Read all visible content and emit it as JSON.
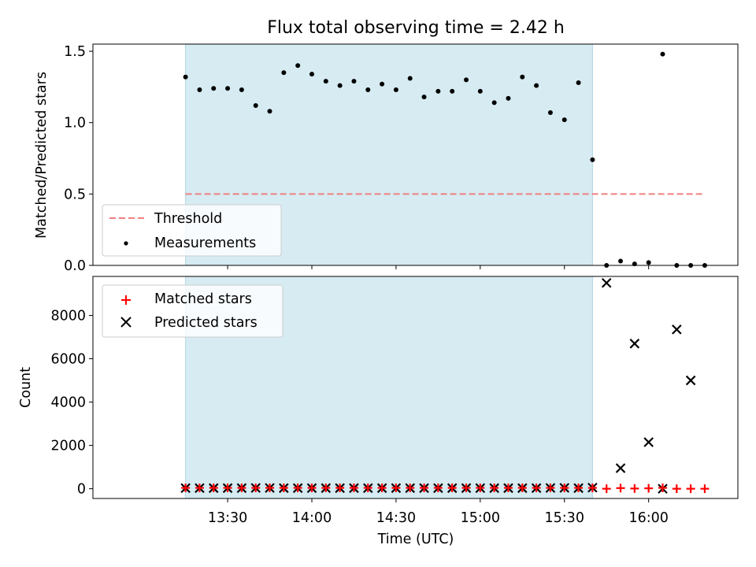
{
  "chart_data": [
    {
      "type": "scatter",
      "title": "Flux total observing time = 2.42 h",
      "xlabel": "",
      "ylabel": "Matched/Predicted stars",
      "xlim_minutes": [
        12.7,
        16.53
      ],
      "ylim": [
        0,
        1.55
      ],
      "yticks": [
        0.0,
        0.5,
        1.0,
        1.5
      ],
      "ytick_labels": [
        "0.0",
        "0.5",
        "1.0",
        "1.5"
      ],
      "shaded_interval": [
        "13:15",
        "15:40"
      ],
      "threshold": {
        "label": "Threshold",
        "value": 0.5,
        "x_start": "13:15",
        "x_end": "16:20",
        "color": "#f08080"
      },
      "legend": {
        "position": "lower-left",
        "entries": [
          "Threshold",
          "Measurements"
        ]
      },
      "series": [
        {
          "name": "Measurements",
          "x": [
            "13:15",
            "13:20",
            "13:25",
            "13:30",
            "13:35",
            "13:40",
            "13:45",
            "13:50",
            "13:55",
            "14:00",
            "14:05",
            "14:10",
            "14:15",
            "14:20",
            "14:25",
            "14:30",
            "14:35",
            "14:40",
            "14:45",
            "14:50",
            "14:55",
            "15:00",
            "15:05",
            "15:10",
            "15:15",
            "15:20",
            "15:25",
            "15:30",
            "15:35",
            "15:40",
            "15:45",
            "15:50",
            "15:55",
            "16:00",
            "16:05",
            "16:10",
            "16:15",
            "16:20"
          ],
          "y": [
            1.32,
            1.23,
            1.24,
            1.24,
            1.23,
            1.12,
            1.08,
            1.35,
            1.4,
            1.34,
            1.29,
            1.26,
            1.29,
            1.23,
            1.27,
            1.23,
            1.31,
            1.18,
            1.22,
            1.22,
            1.3,
            1.22,
            1.14,
            1.17,
            1.32,
            1.26,
            1.07,
            1.02,
            1.28,
            0.74,
            0.0,
            0.03,
            0.01,
            0.02,
            1.48,
            0.0,
            0.0,
            0.0
          ]
        }
      ]
    },
    {
      "type": "scatter",
      "title": "",
      "xlabel": "Time (UTC)",
      "ylabel": "Count",
      "xlim_minutes": [
        12.7,
        16.53
      ],
      "ylim": [
        -450,
        9800
      ],
      "yticks": [
        0,
        2000,
        4000,
        6000,
        8000
      ],
      "ytick_labels": [
        "0",
        "2000",
        "4000",
        "6000",
        "8000"
      ],
      "xticks": [
        "13:30",
        "14:00",
        "14:30",
        "15:00",
        "15:30",
        "16:00"
      ],
      "shaded_interval": [
        "13:15",
        "15:40"
      ],
      "legend": {
        "position": "top-left",
        "entries": [
          "Matched stars",
          "Predicted stars"
        ]
      },
      "series": [
        {
          "name": "Matched stars",
          "marker": "+",
          "color": "#ff0000",
          "x": [
            "13:15",
            "13:20",
            "13:25",
            "13:30",
            "13:35",
            "13:40",
            "13:45",
            "13:50",
            "13:55",
            "14:00",
            "14:05",
            "14:10",
            "14:15",
            "14:20",
            "14:25",
            "14:30",
            "14:35",
            "14:40",
            "14:45",
            "14:50",
            "14:55",
            "15:00",
            "15:05",
            "15:10",
            "15:15",
            "15:20",
            "15:25",
            "15:30",
            "15:35",
            "15:40",
            "15:45",
            "15:50",
            "15:55",
            "16:00",
            "16:05",
            "16:10",
            "16:15",
            "16:20"
          ],
          "y": [
            40,
            40,
            40,
            40,
            40,
            40,
            40,
            40,
            40,
            40,
            40,
            40,
            40,
            40,
            40,
            40,
            40,
            40,
            40,
            40,
            40,
            40,
            40,
            40,
            40,
            40,
            40,
            40,
            40,
            40,
            0,
            30,
            10,
            20,
            40,
            0,
            0,
            0
          ]
        },
        {
          "name": "Predicted stars",
          "marker": "x",
          "color": "#000000",
          "x": [
            "13:15",
            "13:20",
            "13:25",
            "13:30",
            "13:35",
            "13:40",
            "13:45",
            "13:50",
            "13:55",
            "14:00",
            "14:05",
            "14:10",
            "14:15",
            "14:20",
            "14:25",
            "14:30",
            "14:35",
            "14:40",
            "14:45",
            "14:50",
            "14:55",
            "15:00",
            "15:05",
            "15:10",
            "15:15",
            "15:20",
            "15:25",
            "15:30",
            "15:35",
            "15:40",
            "15:45",
            "15:50",
            "15:55",
            "16:00",
            "16:05",
            "16:10",
            "16:15"
          ],
          "y": [
            30,
            30,
            30,
            30,
            30,
            35,
            35,
            30,
            30,
            30,
            30,
            30,
            30,
            30,
            30,
            30,
            30,
            30,
            30,
            30,
            30,
            30,
            30,
            30,
            30,
            30,
            35,
            40,
            30,
            50,
            9500,
            950,
            6700,
            2150,
            0,
            7350,
            5000
          ]
        }
      ]
    }
  ],
  "colors": {
    "shade": "#add8e6",
    "threshold": "#f08080",
    "matched": "#ff0000",
    "predicted": "#000000",
    "measurement": "#000000"
  }
}
